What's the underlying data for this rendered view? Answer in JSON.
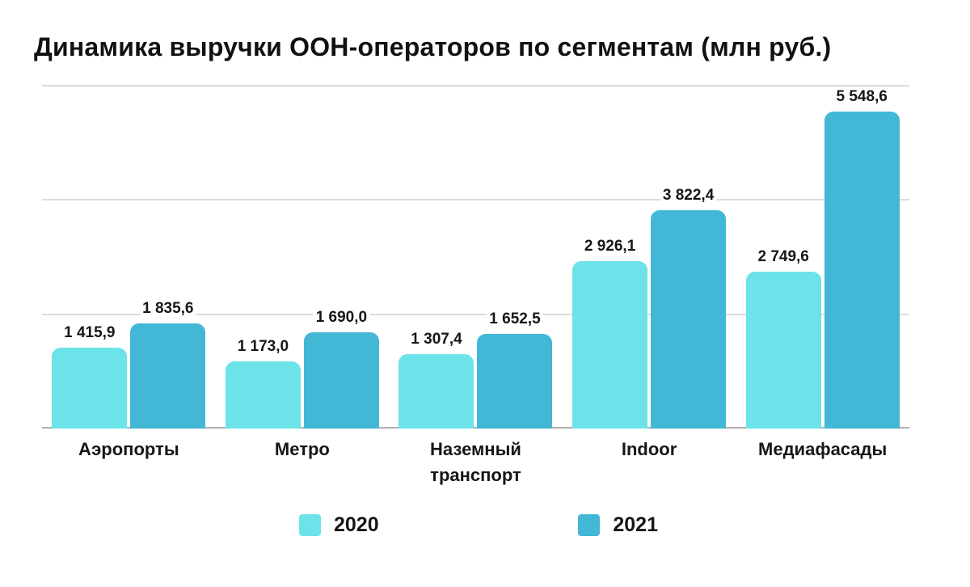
{
  "title": "Динамика выручки ООН-операторов по сегментам (млн руб.)",
  "chart_data": {
    "type": "bar",
    "title": "Динамика выручки ООН-операторов по сегментам (млн руб.)",
    "categories": [
      "Аэропорты",
      "Метро",
      "Наземный транспорт",
      "Indoor",
      "Медиафасады"
    ],
    "series": [
      {
        "name": "2020",
        "color": "#6BE3E9",
        "values": [
          1415.9,
          1173.0,
          1307.4,
          2926.1,
          2749.6
        ],
        "labels": [
          "1 415,9",
          "1 173,0",
          "1 307,4",
          "2 926,1",
          "2 749,6"
        ]
      },
      {
        "name": "2021",
        "color": "#42B7D6",
        "values": [
          1835.6,
          1690.0,
          1652.5,
          3822.4,
          5548.6
        ],
        "labels": [
          "1 835,6",
          "1 690,0",
          "1 652,5",
          "3 822,4",
          "5 548,6"
        ]
      }
    ],
    "xlabel": "",
    "ylabel": "",
    "ylim": [
      0,
      6000
    ],
    "gridlines": [
      2000,
      4000,
      6000
    ],
    "grid_on": true,
    "grid_color": "#dcdcdc",
    "axis_line_color": "#b0b0b0",
    "value_labels_shown": true,
    "y_axis_labels_shown": false,
    "legend_position": "bottom",
    "background_color": "#ffffff",
    "text_color": "#161616"
  }
}
